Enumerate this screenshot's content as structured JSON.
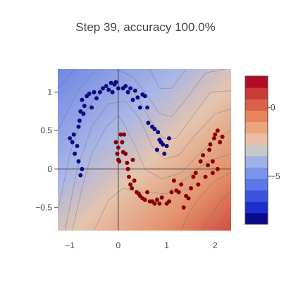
{
  "chart_data": {
    "type": "scatter",
    "title": "Step 39, accuracy 100.0%",
    "xlabel": "",
    "ylabel": "",
    "xlim": [
      -1.25,
      2.33
    ],
    "ylim": [
      -0.8,
      1.3
    ],
    "x_ticks": [
      {
        "value": -1,
        "label": "−1"
      },
      {
        "value": 0,
        "label": "0"
      },
      {
        "value": 1,
        "label": "1"
      },
      {
        "value": 2,
        "label": "2"
      }
    ],
    "y_ticks": [
      {
        "value": -0.5,
        "label": "−0.5"
      },
      {
        "value": 0,
        "label": "0"
      },
      {
        "value": 0.5,
        "label": "0.5"
      },
      {
        "value": 1,
        "label": "1"
      }
    ],
    "grid": false,
    "zero_lines": true,
    "background": "filled decision-function contour (coolwarm)",
    "colorbar": {
      "range": [
        -8.5,
        2.3
      ],
      "ticks": [
        {
          "value": 0,
          "label": "0"
        },
        {
          "value": -5,
          "label": "−5"
        }
      ],
      "colors_low_to_high": [
        "#0a0a8c",
        "#1c2ecc",
        "#3a55dd",
        "#5a78e8",
        "#7b94ea",
        "#a0b1e6",
        "#c8c8c8",
        "#e8bfa6",
        "#eca57e",
        "#e8845c",
        "#d9614b",
        "#c93a38",
        "#b30b26"
      ]
    },
    "contours": [
      {
        "level": 2.0,
        "color": "#e0785a",
        "path": [
          [
            2.33,
            -0.52
          ],
          [
            2.2,
            -0.62
          ],
          [
            2.05,
            -0.8
          ]
        ]
      },
      {
        "level": 1.5,
        "color": "#e28d69",
        "path": [
          [
            2.33,
            -0.28
          ],
          [
            2.1,
            -0.43
          ],
          [
            1.9,
            -0.62
          ],
          [
            1.75,
            -0.8
          ]
        ]
      },
      {
        "level": 1.0,
        "color": "#e8a57f",
        "path": [
          [
            2.33,
            -0.05
          ],
          [
            2.0,
            -0.15
          ],
          [
            1.7,
            -0.35
          ],
          [
            1.45,
            -0.58
          ],
          [
            1.3,
            -0.8
          ]
        ]
      },
      {
        "level": 0.5,
        "color": "#ebb998",
        "path": [
          [
            2.33,
            0.2
          ],
          [
            1.85,
            0.1
          ],
          [
            1.45,
            -0.1
          ],
          [
            1.0,
            -0.32
          ],
          [
            0.5,
            -0.3
          ],
          [
            0.1,
            -0.25
          ],
          [
            -0.2,
            -0.4
          ],
          [
            -0.5,
            -0.8
          ]
        ]
      },
      {
        "level": 0.0,
        "color": "#d2ccc8",
        "path": [
          [
            2.33,
            0.5
          ],
          [
            2.0,
            0.4
          ],
          [
            1.6,
            0.15
          ],
          [
            1.3,
            -0.05
          ],
          [
            0.9,
            -0.13
          ],
          [
            0.55,
            0.0
          ],
          [
            0.35,
            0.3
          ],
          [
            0.15,
            0.55
          ],
          [
            0.0,
            0.7
          ],
          [
            -0.25,
            0.55
          ],
          [
            -0.55,
            0.2
          ],
          [
            -0.75,
            -0.25
          ],
          [
            -0.95,
            -0.8
          ]
        ]
      },
      {
        "level": -0.5,
        "color": "#b3bde0",
        "path": [
          [
            2.33,
            0.78
          ],
          [
            2.0,
            0.72
          ],
          [
            1.6,
            0.45
          ],
          [
            1.25,
            0.18
          ],
          [
            0.95,
            0.13
          ],
          [
            0.7,
            0.3
          ],
          [
            0.45,
            0.65
          ],
          [
            0.15,
            0.88
          ],
          [
            -0.2,
            0.85
          ],
          [
            -0.55,
            0.55
          ],
          [
            -0.85,
            0.0
          ],
          [
            -1.1,
            -0.8
          ]
        ]
      },
      {
        "level": -1.0,
        "color": "#9aaae6",
        "path": [
          [
            2.33,
            1.02
          ],
          [
            1.9,
            1.0
          ],
          [
            1.55,
            0.7
          ],
          [
            1.2,
            0.4
          ],
          [
            0.92,
            0.4
          ],
          [
            0.65,
            0.65
          ],
          [
            0.35,
            0.98
          ],
          [
            0.0,
            1.1
          ],
          [
            -0.4,
            1.0
          ],
          [
            -0.75,
            0.68
          ],
          [
            -1.0,
            0.2
          ],
          [
            -1.25,
            -0.55
          ]
        ]
      },
      {
        "level": -2.0,
        "color": "#8497ea",
        "path": [
          [
            2.2,
            1.3
          ],
          [
            1.8,
            1.25
          ],
          [
            1.45,
            0.95
          ],
          [
            1.1,
            0.68
          ],
          [
            0.85,
            0.72
          ],
          [
            0.55,
            1.0
          ],
          [
            0.3,
            1.2
          ],
          [
            -0.05,
            1.3
          ]
        ]
      },
      {
        "level": -2.0,
        "color": "#8497ea",
        "path": [
          [
            -0.45,
            1.3
          ],
          [
            -0.8,
            1.05
          ],
          [
            -1.05,
            0.75
          ],
          [
            -1.25,
            0.5
          ]
        ]
      },
      {
        "level": -3.0,
        "color": "#7689e2",
        "path": [
          [
            1.4,
            1.3
          ],
          [
            1.1,
            1.05
          ],
          [
            0.85,
            1.05
          ],
          [
            0.65,
            1.3
          ]
        ]
      },
      {
        "level": -3.0,
        "color": "#7689e2",
        "path": [
          [
            -0.9,
            1.3
          ],
          [
            -1.1,
            1.15
          ],
          [
            -1.25,
            1.05
          ]
        ]
      }
    ],
    "series": [
      {
        "class": "blue",
        "color": "#0b0b85",
        "points": [
          [
            -1.0,
            0.4
          ],
          [
            -0.95,
            0.35
          ],
          [
            -0.92,
            0.45
          ],
          [
            -0.9,
            0.2
          ],
          [
            -0.85,
            0.3
          ],
          [
            -0.82,
            0.55
          ],
          [
            -0.8,
            0.63
          ],
          [
            -0.78,
            0.75
          ],
          [
            -0.75,
            0.9
          ],
          [
            -0.72,
            0.72
          ],
          [
            -0.7,
            0.82
          ],
          [
            -0.65,
            0.95
          ],
          [
            -0.6,
            0.98
          ],
          [
            -0.55,
            0.8
          ],
          [
            -0.5,
            1.0
          ],
          [
            -0.45,
            0.92
          ],
          [
            -0.38,
            1.0
          ],
          [
            -0.32,
            1.05
          ],
          [
            -0.25,
            1.08
          ],
          [
            -0.2,
            1.03
          ],
          [
            -0.15,
            1.12
          ],
          [
            -0.12,
            1.0
          ],
          [
            -0.08,
            1.1
          ],
          [
            -0.05,
            1.13
          ],
          [
            0.0,
            1.05
          ],
          [
            0.1,
            1.05
          ],
          [
            0.15,
            1.08
          ],
          [
            0.2,
            1.0
          ],
          [
            0.25,
            1.05
          ],
          [
            0.3,
            0.9
          ],
          [
            0.35,
            1.02
          ],
          [
            0.4,
            0.93
          ],
          [
            0.45,
            0.8
          ],
          [
            0.5,
            0.97
          ],
          [
            0.55,
            0.95
          ],
          [
            0.6,
            0.8
          ],
          [
            0.62,
            0.6
          ],
          [
            0.7,
            0.55
          ],
          [
            0.75,
            0.52
          ],
          [
            0.8,
            0.25
          ],
          [
            0.82,
            0.48
          ],
          [
            0.85,
            0.38
          ],
          [
            0.88,
            0.35
          ],
          [
            0.92,
            0.32
          ],
          [
            0.95,
            0.2
          ],
          [
            1.0,
            0.3
          ],
          [
            1.05,
            0.4
          ],
          [
            -0.82,
            0.1
          ],
          [
            -0.78,
            -0.08
          ],
          [
            -0.75,
            0.0
          ]
        ]
      },
      {
        "class": "red",
        "color": "#8b0000",
        "points": [
          [
            -0.05,
            0.35
          ],
          [
            -0.02,
            0.2
          ],
          [
            0.0,
            0.28
          ],
          [
            0.0,
            0.12
          ],
          [
            0.02,
            0.1
          ],
          [
            0.05,
            0.45
          ],
          [
            0.08,
            0.35
          ],
          [
            0.1,
            0.22
          ],
          [
            0.12,
            0.45
          ],
          [
            0.15,
            0.2
          ],
          [
            0.18,
            0.08
          ],
          [
            0.2,
            0.0
          ],
          [
            0.22,
            -0.1
          ],
          [
            0.25,
            -0.2
          ],
          [
            0.28,
            -0.25
          ],
          [
            0.3,
            0.12
          ],
          [
            0.33,
            -0.15
          ],
          [
            0.38,
            -0.3
          ],
          [
            0.42,
            -0.32
          ],
          [
            0.45,
            -0.35
          ],
          [
            0.5,
            -0.38
          ],
          [
            0.55,
            -0.4
          ],
          [
            0.6,
            -0.3
          ],
          [
            0.65,
            -0.42
          ],
          [
            0.7,
            -0.42
          ],
          [
            0.75,
            -0.45
          ],
          [
            0.8,
            -0.4
          ],
          [
            0.85,
            -0.45
          ],
          [
            0.9,
            -0.37
          ],
          [
            1.0,
            -0.45
          ],
          [
            1.05,
            -0.42
          ],
          [
            1.1,
            -0.3
          ],
          [
            1.15,
            -0.15
          ],
          [
            1.2,
            -0.28
          ],
          [
            1.25,
            -0.3
          ],
          [
            1.3,
            -0.2
          ],
          [
            1.35,
            -0.5
          ],
          [
            1.4,
            -0.35
          ],
          [
            1.45,
            -0.38
          ],
          [
            1.5,
            -0.25
          ],
          [
            1.55,
            -0.1
          ],
          [
            1.6,
            -0.05
          ],
          [
            1.65,
            -0.2
          ],
          [
            1.7,
            0.1
          ],
          [
            1.75,
            0.18
          ],
          [
            1.8,
            -0.1
          ],
          [
            1.85,
            0.05
          ],
          [
            1.88,
            0.25
          ],
          [
            1.9,
            0.32
          ],
          [
            1.95,
            0.1
          ],
          [
            1.98,
            0.4
          ],
          [
            2.0,
            0.45
          ],
          [
            2.05,
            0.5
          ],
          [
            2.1,
            0.35
          ],
          [
            2.15,
            0.42
          ],
          [
            2.05,
            0.0
          ],
          [
            1.95,
            -0.05
          ]
        ]
      }
    ]
  }
}
